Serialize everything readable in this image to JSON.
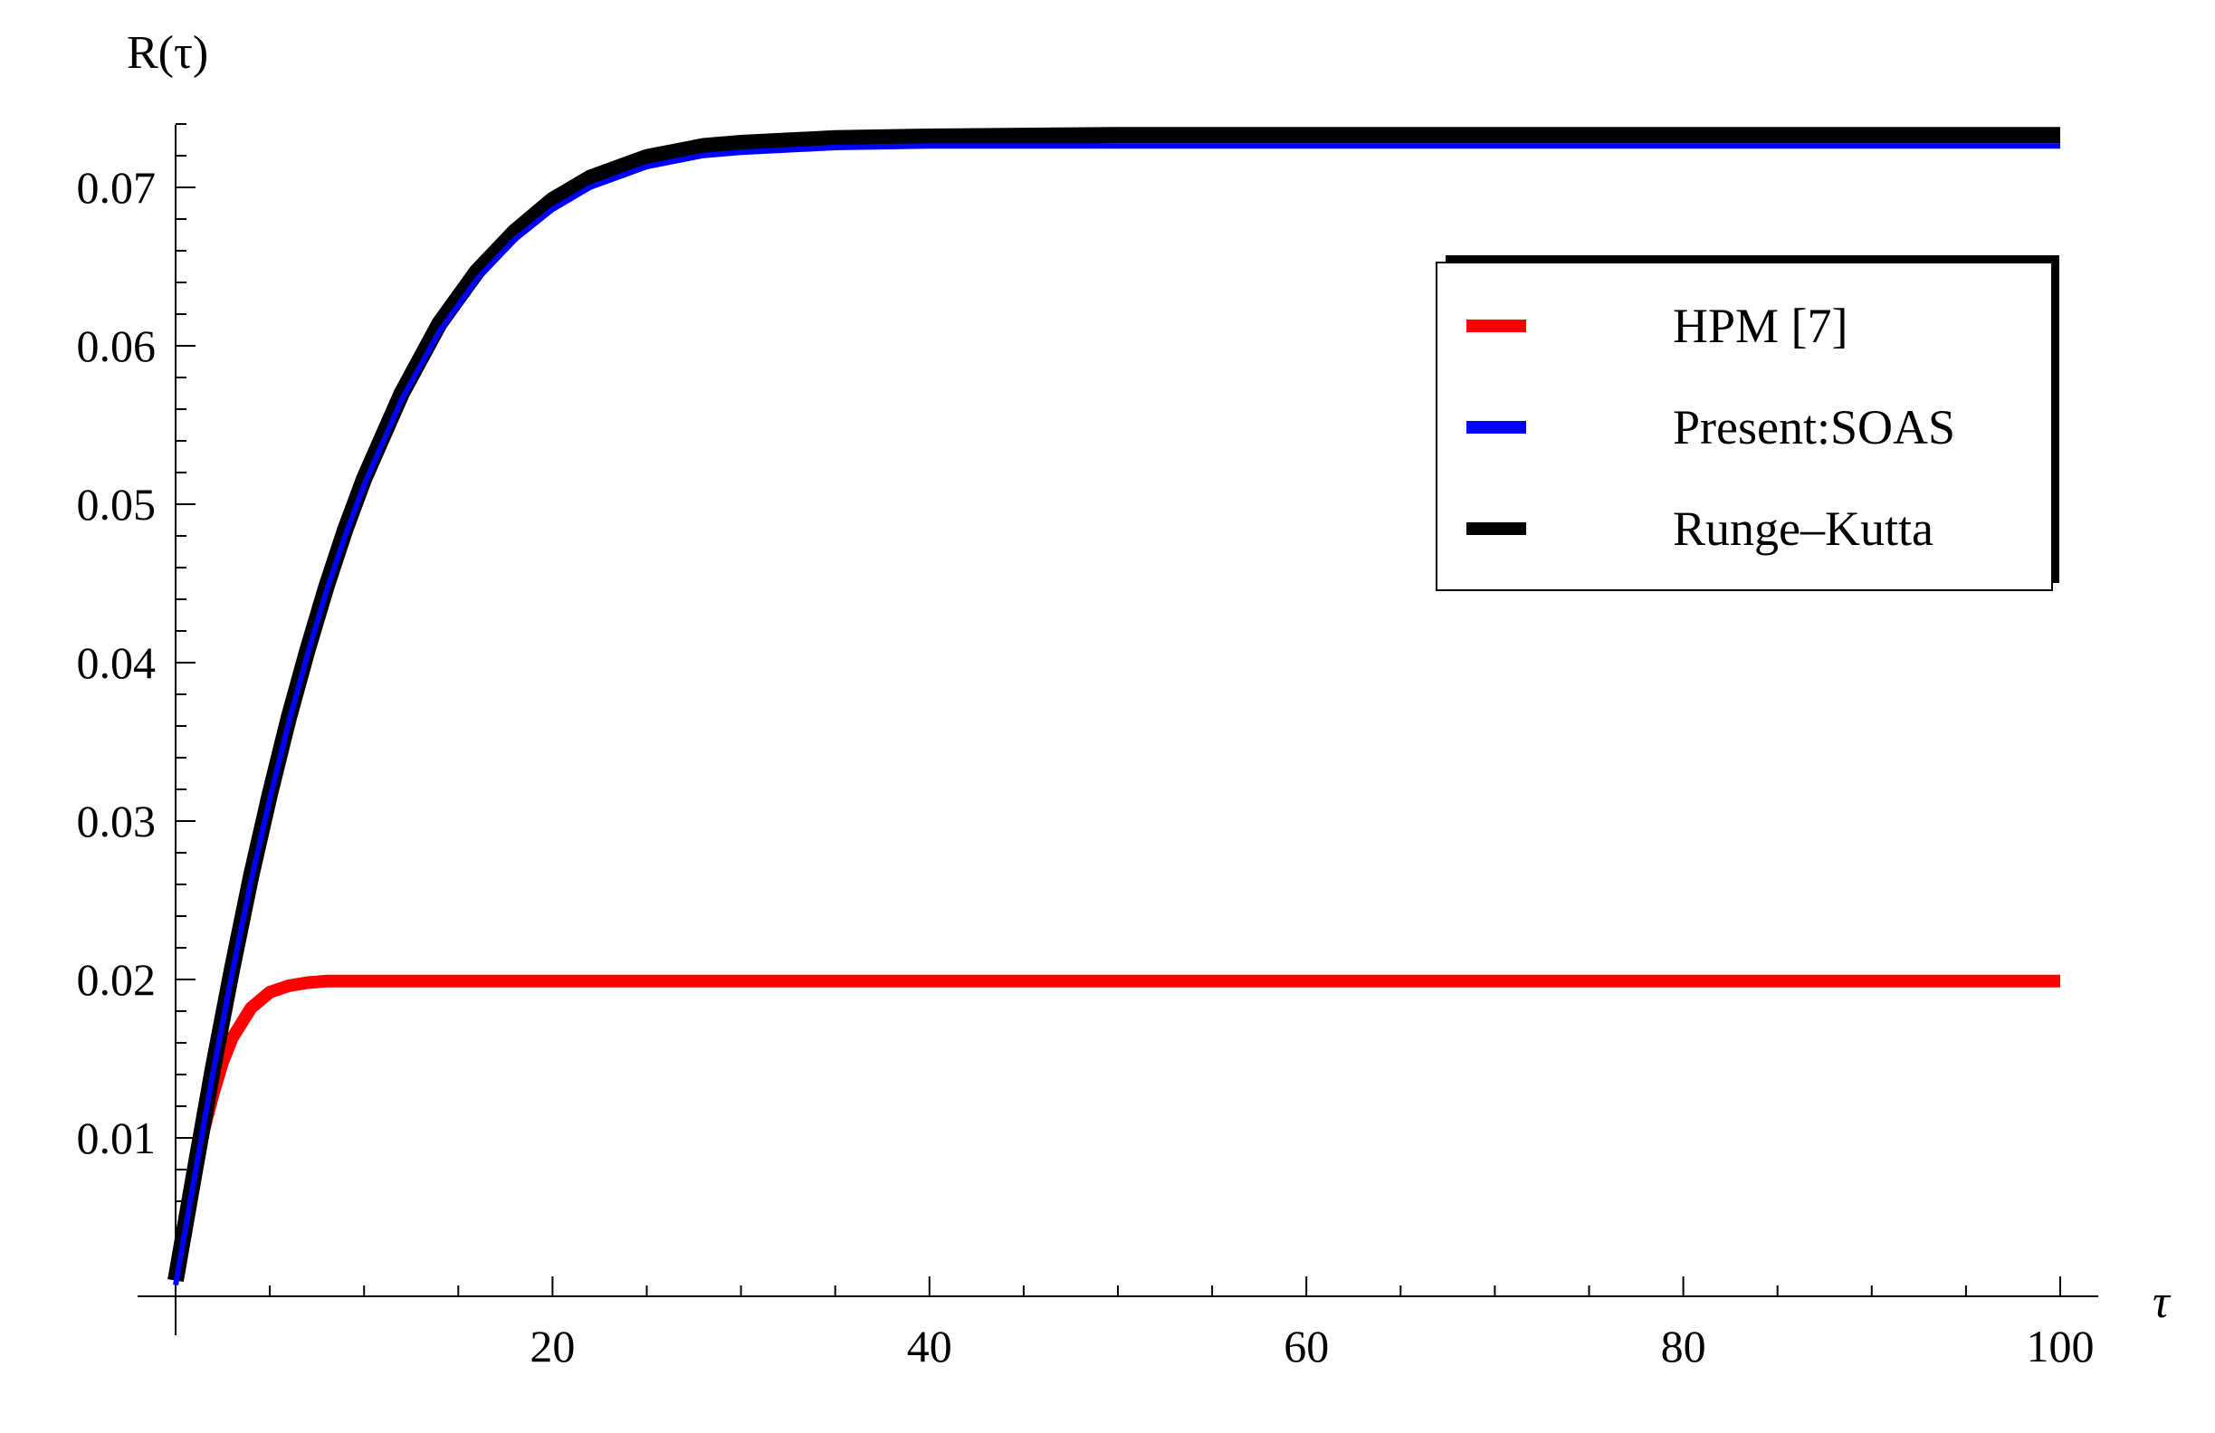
{
  "chart_data": {
    "type": "line",
    "xlabel": "τ",
    "ylabel": "R(τ)",
    "xlim": [
      0,
      100
    ],
    "ylim": [
      0,
      0.074
    ],
    "x_ticks": [
      20,
      40,
      60,
      80,
      100
    ],
    "y_ticks": [
      0.01,
      0.02,
      0.03,
      0.04,
      0.05,
      0.06,
      0.07
    ],
    "x_tick_labels": [
      "20",
      "40",
      "60",
      "80",
      "100"
    ],
    "y_tick_labels": [
      "0.01",
      "0.02",
      "0.03",
      "0.04",
      "0.05",
      "0.06",
      "0.07"
    ],
    "grid": false,
    "legend_position": "top-right",
    "series": [
      {
        "name": "HPM [7]",
        "color": "#ff0000",
        "x": [
          0,
          0.5,
          1,
          1.5,
          2,
          2.5,
          3,
          4,
          5,
          6,
          7,
          8,
          10,
          15,
          20,
          30,
          40,
          50,
          60,
          70,
          80,
          90,
          100
        ],
        "y": [
          0.001,
          0.0045,
          0.0075,
          0.0105,
          0.0128,
          0.0148,
          0.0163,
          0.0182,
          0.0192,
          0.0196,
          0.0198,
          0.0199,
          0.0199,
          0.0199,
          0.0199,
          0.0199,
          0.0199,
          0.0199,
          0.0199,
          0.0199,
          0.0199,
          0.0199,
          0.0199
        ]
      },
      {
        "name": "Present:SOAS",
        "color": "#0000ff",
        "x": [
          0,
          1,
          2,
          3,
          4,
          5,
          6,
          7,
          8,
          9,
          10,
          12,
          14,
          16,
          18,
          20,
          22,
          25,
          28,
          30,
          35,
          40,
          50,
          60,
          70,
          80,
          90,
          100
        ],
        "y": [
          0.001,
          0.0078,
          0.0145,
          0.0207,
          0.0265,
          0.0317,
          0.0365,
          0.0408,
          0.0448,
          0.0483,
          0.0515,
          0.0569,
          0.0612,
          0.0645,
          0.067,
          0.0689,
          0.0703,
          0.0716,
          0.0723,
          0.0725,
          0.0728,
          0.0729,
          0.0729,
          0.0729,
          0.0729,
          0.0729,
          0.0729,
          0.0729
        ]
      },
      {
        "name": "Runge–Kutta",
        "color": "#000000",
        "x": [
          0,
          1,
          2,
          3,
          4,
          5,
          6,
          7,
          8,
          9,
          10,
          12,
          14,
          16,
          18,
          20,
          22,
          25,
          28,
          30,
          35,
          40,
          50,
          60,
          70,
          80,
          90,
          100
        ],
        "y": [
          0.001,
          0.0078,
          0.0145,
          0.0207,
          0.0265,
          0.0317,
          0.0365,
          0.0408,
          0.0448,
          0.0484,
          0.0516,
          0.057,
          0.0614,
          0.0647,
          0.0672,
          0.0692,
          0.0706,
          0.0719,
          0.0726,
          0.0728,
          0.0731,
          0.0732,
          0.0733,
          0.0733,
          0.0733,
          0.0733,
          0.0733,
          0.0733
        ]
      }
    ]
  }
}
